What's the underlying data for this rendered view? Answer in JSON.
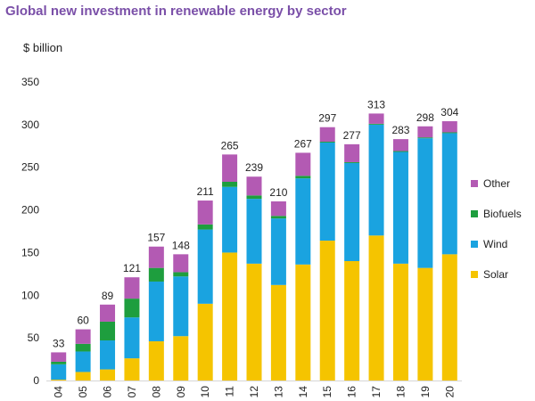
{
  "chart_data": {
    "type": "bar",
    "stacked": true,
    "title": "Global new investment in renewable energy by sector",
    "ylabel": "$ billion",
    "xlabel": "",
    "ylim": [
      0,
      350
    ],
    "yticks": [
      0,
      50,
      100,
      150,
      200,
      250,
      300,
      350
    ],
    "grid": false,
    "legend_position": "right",
    "categories": [
      "04",
      "05",
      "06",
      "07",
      "08",
      "09",
      "10",
      "11",
      "12",
      "13",
      "14",
      "15",
      "16",
      "17",
      "18",
      "19",
      "20"
    ],
    "totals": [
      33,
      60,
      89,
      121,
      157,
      148,
      211,
      265,
      239,
      210,
      267,
      297,
      277,
      313,
      283,
      298,
      304
    ],
    "series": [
      {
        "name": "Solar",
        "color": "#f5c400",
        "values": [
          1,
          10,
          13,
          26,
          46,
          52,
          90,
          150,
          137,
          112,
          136,
          164,
          140,
          170,
          137,
          132,
          148
        ]
      },
      {
        "name": "Wind",
        "color": "#1aa3e0",
        "values": [
          18,
          24,
          34,
          48,
          70,
          70,
          87,
          77,
          76,
          78,
          101,
          115,
          115,
          130,
          131,
          152,
          142
        ]
      },
      {
        "name": "Biofuels",
        "color": "#1e9e3e",
        "values": [
          3,
          9,
          22,
          22,
          16,
          5,
          6,
          6,
          4,
          3,
          3,
          1,
          1,
          1,
          1,
          1,
          1
        ]
      },
      {
        "name": "Other",
        "color": "#b35ab3",
        "values": [
          11,
          17,
          20,
          25,
          25,
          21,
          28,
          32,
          22,
          17,
          27,
          17,
          21,
          12,
          14,
          13,
          13
        ]
      }
    ]
  }
}
